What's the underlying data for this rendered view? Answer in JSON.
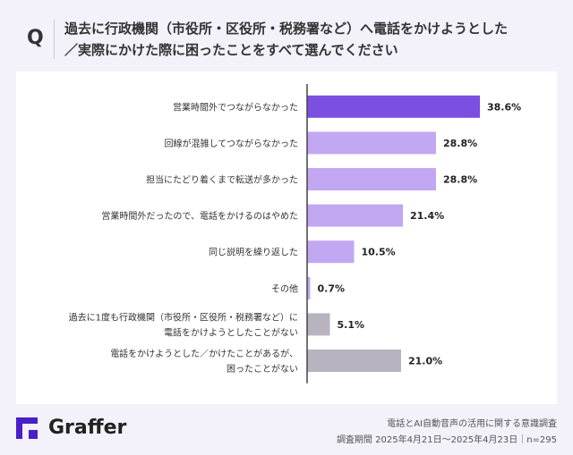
{
  "question_mark": "Q",
  "title_line1": "過去に行政機関（市役所・区役所・税務署など）へ電話をかけようとした",
  "title_line2": "／実際にかけた際に困ったことをすべて選んでください",
  "brand": "Graffer",
  "source_line1": "電話とAI自動音声の活用に関する意識調査",
  "source_line2": "調査期間 2025年4月21日〜2025年4月23日｜n=295",
  "colors": {
    "highlight": "#7b4fe0",
    "primary": "#c2a8f2",
    "gray": "#b7b4bf",
    "logo": "#4a1fc7"
  },
  "chart_data": {
    "type": "bar",
    "orientation": "horizontal",
    "xlim": [
      0,
      40
    ],
    "unit": "%",
    "categories": [
      [
        "営業時間外でつながらなかった"
      ],
      [
        "回線が混雑してつながらなかった"
      ],
      [
        "担当にたどり着くまで転送が多かった"
      ],
      [
        "営業時間外だったので、電話をかけるのはやめた"
      ],
      [
        "同じ説明を繰り返した"
      ],
      [
        "その他"
      ],
      [
        "過去に1度も行政機関（市役所・区役所・税務署など）に",
        "電話をかけようとしたことがない"
      ],
      [
        "電話をかけようとした／かけたことがあるが、",
        "困ったことがない"
      ]
    ],
    "values": [
      38.6,
      28.8,
      28.8,
      21.4,
      10.5,
      0.7,
      5.1,
      21.0
    ],
    "labels": [
      "38.6%",
      "28.8%",
      "28.8%",
      "21.4%",
      "10.5%",
      "0.7%",
      "5.1%",
      "21.0%"
    ],
    "bar_colors": [
      "highlight",
      "primary",
      "primary",
      "primary",
      "primary",
      "primary",
      "gray",
      "gray"
    ]
  }
}
